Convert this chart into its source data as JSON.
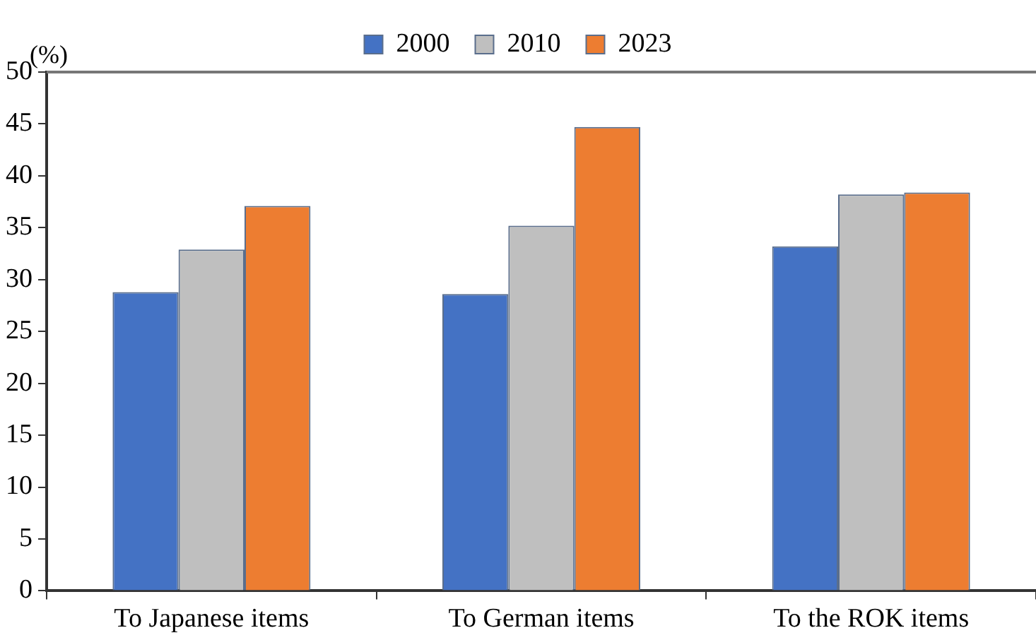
{
  "chart_data": {
    "type": "bar",
    "ylabel": "(%)",
    "categories": [
      "To Japanese items",
      "To German items",
      "To the ROK items"
    ],
    "series": [
      {
        "name": "2000",
        "color": "#4472c4",
        "values": [
          28.8,
          28.6,
          33.2
        ]
      },
      {
        "name": "2010",
        "color": "#bfbfbf",
        "values": [
          32.9,
          35.2,
          38.2
        ]
      },
      {
        "name": "2023",
        "color": "#ed7d31",
        "values": [
          37.1,
          44.7,
          38.4
        ]
      }
    ],
    "ylim": [
      0,
      50
    ],
    "yticks": [
      0,
      5,
      10,
      15,
      20,
      25,
      30,
      35,
      40,
      45,
      50
    ],
    "grid": false,
    "legend": "top"
  }
}
